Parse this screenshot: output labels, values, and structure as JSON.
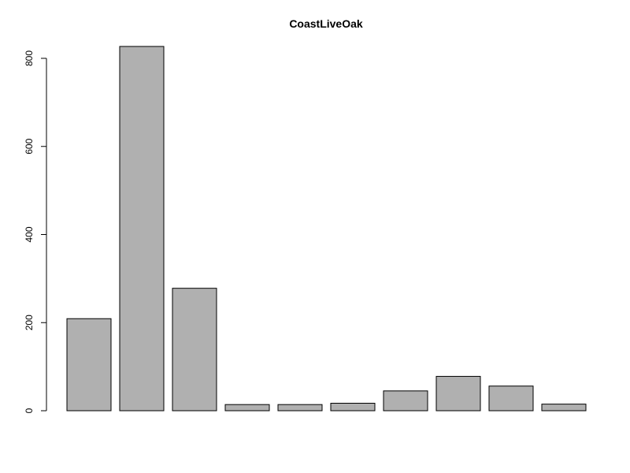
{
  "chart_data": {
    "type": "bar",
    "title": "CoastLiveOak",
    "xlabel": "",
    "ylabel": "",
    "categories": [
      "",
      "",
      "",
      "",
      "",
      "",
      "",
      "",
      "",
      ""
    ],
    "values": [
      209,
      827,
      278,
      14,
      14,
      17,
      45,
      78,
      56,
      15
    ],
    "ylim": [
      0,
      800
    ],
    "yticks": [
      0,
      200,
      400,
      600,
      800
    ],
    "bar_color": "#b0b0b0",
    "border_color": "#000000",
    "grid": false,
    "legend": "none"
  }
}
